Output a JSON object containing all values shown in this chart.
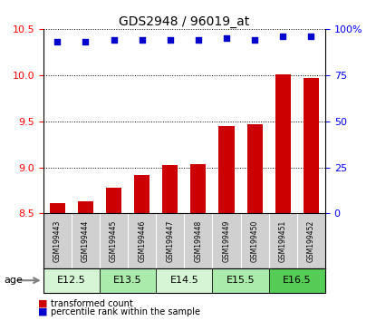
{
  "title": "GDS2948 / 96019_at",
  "samples": [
    "GSM199443",
    "GSM199444",
    "GSM199445",
    "GSM199446",
    "GSM199447",
    "GSM199448",
    "GSM199449",
    "GSM199450",
    "GSM199451",
    "GSM199452"
  ],
  "bar_values": [
    8.61,
    8.63,
    8.78,
    8.92,
    9.02,
    9.03,
    9.45,
    9.47,
    10.01,
    9.97
  ],
  "scatter_values": [
    93,
    93,
    94,
    94,
    94,
    94,
    95,
    94,
    96,
    96
  ],
  "bar_color": "#cc0000",
  "scatter_color": "#0000cc",
  "ylim_left": [
    8.5,
    10.5
  ],
  "ylim_right": [
    0,
    100
  ],
  "yticks_left": [
    8.5,
    9.0,
    9.5,
    10.0,
    10.5
  ],
  "yticks_right": [
    0,
    25,
    50,
    75,
    100
  ],
  "age_groups": [
    {
      "label": "E12.5",
      "samples": [
        0,
        1
      ],
      "color": "#d5f5d5"
    },
    {
      "label": "E13.5",
      "samples": [
        2,
        3
      ],
      "color": "#aaeaaa"
    },
    {
      "label": "E14.5",
      "samples": [
        4,
        5
      ],
      "color": "#d5f5d5"
    },
    {
      "label": "E15.5",
      "samples": [
        6,
        7
      ],
      "color": "#aaeaaa"
    },
    {
      "label": "E16.5",
      "samples": [
        8,
        9
      ],
      "color": "#55cc55"
    }
  ],
  "legend_bar_label": "transformed count",
  "legend_scatter_label": "percentile rank within the sample",
  "background_color": "#ffffff",
  "grid_color": "#000000",
  "sample_box_color": "#d0d0d0"
}
